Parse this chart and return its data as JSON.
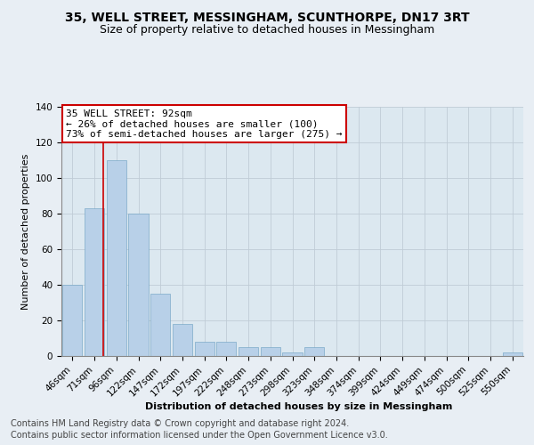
{
  "title": "35, WELL STREET, MESSINGHAM, SCUNTHORPE, DN17 3RT",
  "subtitle": "Size of property relative to detached houses in Messingham",
  "xlabel": "Distribution of detached houses by size in Messingham",
  "ylabel": "Number of detached properties",
  "categories": [
    "46sqm",
    "71sqm",
    "96sqm",
    "122sqm",
    "147sqm",
    "172sqm",
    "197sqm",
    "222sqm",
    "248sqm",
    "273sqm",
    "298sqm",
    "323sqm",
    "348sqm",
    "374sqm",
    "399sqm",
    "424sqm",
    "449sqm",
    "474sqm",
    "500sqm",
    "525sqm",
    "550sqm"
  ],
  "values": [
    40,
    83,
    110,
    80,
    35,
    18,
    8,
    8,
    5,
    5,
    2,
    5,
    0,
    0,
    0,
    0,
    0,
    0,
    0,
    0,
    2
  ],
  "bar_color": "#b8d0e8",
  "bar_edge_color": "#6a9fc0",
  "vline_x": 1.42,
  "vline_color": "#cc0000",
  "annotation_text": "35 WELL STREET: 92sqm\n← 26% of detached houses are smaller (100)\n73% of semi-detached houses are larger (275) →",
  "annotation_box_edge_color": "#cc0000",
  "annotation_box_face_color": "#ffffff",
  "ylim": [
    0,
    140
  ],
  "yticks": [
    0,
    20,
    40,
    60,
    80,
    100,
    120,
    140
  ],
  "footer_line1": "Contains HM Land Registry data © Crown copyright and database right 2024.",
  "footer_line2": "Contains public sector information licensed under the Open Government Licence v3.0.",
  "bg_color": "#e8eef4",
  "plot_bg_color": "#dce8f0",
  "title_fontsize": 10,
  "subtitle_fontsize": 9,
  "axis_label_fontsize": 8,
  "tick_fontsize": 7.5,
  "annotation_fontsize": 8,
  "footer_fontsize": 7
}
